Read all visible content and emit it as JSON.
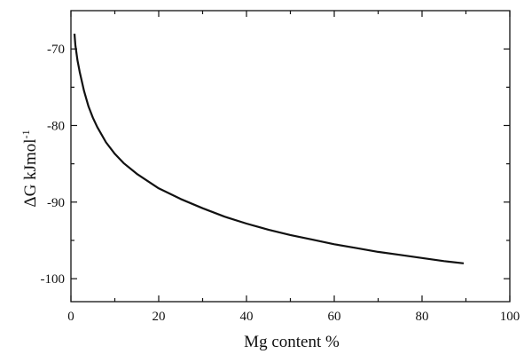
{
  "chart_data": {
    "type": "line",
    "xlabel": "Mg content %",
    "ylabel_main": "ΔG kJmol",
    "ylabel_sup": "-1",
    "xlim": [
      0,
      100
    ],
    "ylim": [
      -103,
      -65
    ],
    "x_ticks": [
      0,
      20,
      40,
      60,
      80,
      100
    ],
    "x_tick_labels": [
      "0",
      "20",
      "40",
      "60",
      "80",
      "100"
    ],
    "y_ticks": [
      -70,
      -80,
      -90,
      -100
    ],
    "y_tick_labels": [
      "-70",
      "-80",
      "-90",
      "-100"
    ],
    "grid": false,
    "series": [
      {
        "color": "#111111",
        "x": [
          0.8,
          1,
          1.5,
          2,
          3,
          4,
          5,
          6,
          8,
          10,
          12,
          15,
          20,
          25,
          30,
          35,
          40,
          45,
          50,
          55,
          60,
          65,
          70,
          75,
          80,
          85,
          89.5
        ],
        "y": [
          -68,
          -69.5,
          -71.5,
          -73,
          -75.5,
          -77.5,
          -79,
          -80.2,
          -82.2,
          -83.7,
          -84.9,
          -86.3,
          -88.2,
          -89.6,
          -90.8,
          -91.9,
          -92.8,
          -93.6,
          -94.3,
          -94.9,
          -95.5,
          -96.0,
          -96.5,
          -96.9,
          -97.3,
          -97.7,
          -98.0
        ]
      }
    ]
  }
}
